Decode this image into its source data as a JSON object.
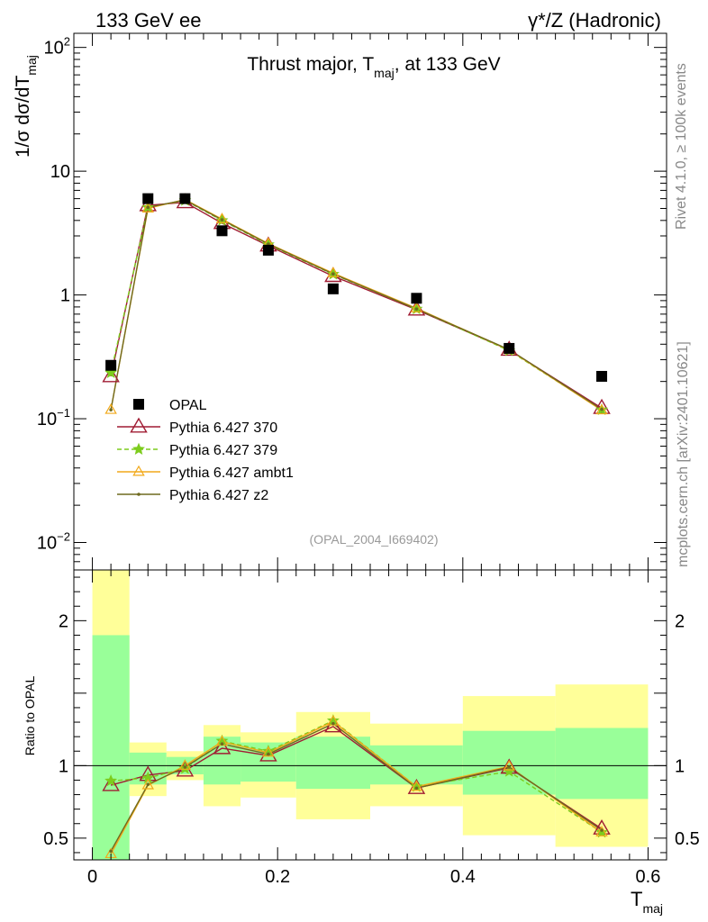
{
  "header": {
    "left": "133 GeV ee",
    "right": "γ*/Z (Hadronic)"
  },
  "side_text": {
    "top": "Rivet 4.1.0, ≥ 100k events",
    "bottom": "mcplots.cern.ch [arXiv:2401.10621]"
  },
  "chart_data": [
    {
      "type": "line",
      "yscale": "log",
      "title": "Thrust major, T_maj, at 133 GeV",
      "title_main": "Thrust major, T",
      "title_sub": "maj",
      "title_tail": ", at 133 GeV",
      "ylabel_main": "1/σ  dσ/dT",
      "ylabel_sub": "maj",
      "analysis_tag": "(OPAL_2004_I669402)",
      "xlim": [
        -0.02,
        0.62
      ],
      "ylim": [
        0.006,
        130
      ],
      "yticks": [
        {
          "v": 0.01,
          "base": "10",
          "exp": "−2"
        },
        {
          "v": 0.1,
          "base": "10",
          "exp": "−1"
        },
        {
          "v": 1,
          "base": "1",
          "exp": ""
        },
        {
          "v": 10,
          "base": "10",
          "exp": ""
        },
        {
          "v": 100,
          "base": "10",
          "exp": "2"
        }
      ],
      "legend_position": "lower-left",
      "x": [
        0.02,
        0.06,
        0.1,
        0.14,
        0.19,
        0.26,
        0.35,
        0.45,
        0.55
      ],
      "bin_edges": [
        0.0,
        0.04,
        0.08,
        0.12,
        0.16,
        0.22,
        0.3,
        0.4,
        0.5,
        0.6
      ],
      "series": [
        {
          "name": "OPAL",
          "style": "data",
          "color": "#000000",
          "values": [
            0.27,
            6.0,
            6.0,
            3.3,
            2.3,
            1.12,
            0.94,
            0.37,
            0.22
          ]
        },
        {
          "name": "Pythia 6.427 370",
          "style": "triangle",
          "color": "#a01c33",
          "values": [
            0.22,
            5.3,
            5.6,
            3.8,
            2.5,
            1.42,
            0.76,
            0.36,
            0.122
          ]
        },
        {
          "name": "Pythia 6.427 379",
          "style": "star",
          "color": "#7dcc1d",
          "values": [
            0.235,
            5.1,
            5.8,
            4.0,
            2.55,
            1.47,
            0.77,
            0.355,
            0.118
          ]
        },
        {
          "name": "Pythia 6.427 ambt1",
          "style": "triangle-orange",
          "color": "#f2a91a",
          "values": [
            0.118,
            5.0,
            5.9,
            4.1,
            2.6,
            1.5,
            0.78,
            0.36,
            0.117
          ]
        },
        {
          "name": "Pythia 6.427 z2",
          "style": "dot",
          "color": "#6f6a1f",
          "values": [
            0.118,
            5.1,
            5.85,
            4.05,
            2.58,
            1.48,
            0.77,
            0.362,
            0.119
          ]
        }
      ]
    },
    {
      "type": "line",
      "yscale": "linear",
      "ylabel": "Ratio to OPAL",
      "xlabel_main": "T",
      "xlabel_sub": "maj",
      "xlim": [
        -0.02,
        0.62
      ],
      "ylim": [
        0.35,
        2.35
      ],
      "xticks": [
        0,
        0.2,
        0.4,
        0.6
      ],
      "xtick_labels": [
        "0",
        "0.2",
        "0.4",
        "0.6"
      ],
      "yticks": [
        0.5,
        1,
        2
      ],
      "ytick_labels": [
        "0.5",
        "1",
        "2"
      ],
      "bin_edges": [
        0.0,
        0.04,
        0.08,
        0.12,
        0.16,
        0.22,
        0.3,
        0.4,
        0.5,
        0.6
      ],
      "band_green": [
        [
          0.35,
          1.9
        ],
        [
          0.87,
          1.09
        ],
        [
          0.94,
          1.06
        ],
        [
          0.87,
          1.2
        ],
        [
          0.89,
          1.16
        ],
        [
          0.84,
          1.2
        ],
        [
          0.87,
          1.14
        ],
        [
          0.8,
          1.24
        ],
        [
          0.77,
          1.26
        ]
      ],
      "band_yellow": [
        [
          0.35,
          2.35
        ],
        [
          0.79,
          1.16
        ],
        [
          0.9,
          1.1
        ],
        [
          0.72,
          1.28
        ],
        [
          0.78,
          1.23
        ],
        [
          0.63,
          1.37
        ],
        [
          0.72,
          1.29
        ],
        [
          0.52,
          1.48
        ],
        [
          0.44,
          1.56
        ]
      ],
      "x": [
        0.02,
        0.06,
        0.1,
        0.14,
        0.19,
        0.26,
        0.35,
        0.45,
        0.55
      ],
      "series": [
        {
          "name": "Pythia 6.427 370",
          "color": "#a01c33",
          "values": [
            0.865,
            0.935,
            0.965,
            1.12,
            1.07,
            1.27,
            0.845,
            0.985,
            0.565
          ]
        },
        {
          "name": "Pythia 6.427 379",
          "color": "#7dcc1d",
          "values": [
            0.895,
            0.915,
            0.98,
            1.17,
            1.1,
            1.31,
            0.855,
            0.96,
            0.54
          ]
        },
        {
          "name": "Pythia 6.427 ambt1",
          "color": "#f2a91a",
          "values": [
            0.39,
            0.865,
            1.0,
            1.165,
            1.09,
            1.305,
            0.855,
            0.995,
            0.54
          ]
        },
        {
          "name": "Pythia 6.427 z2",
          "color": "#6f6a1f",
          "values": [
            0.41,
            0.87,
            0.99,
            1.15,
            1.08,
            1.29,
            0.845,
            0.99,
            0.555
          ]
        }
      ]
    }
  ]
}
